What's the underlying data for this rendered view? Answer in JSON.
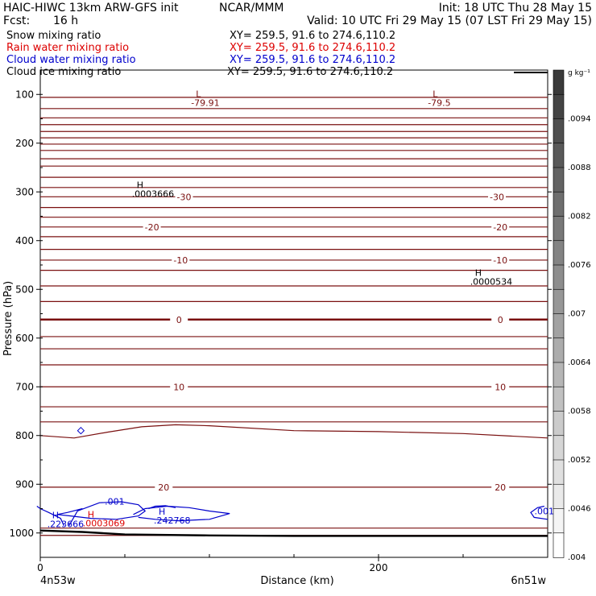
{
  "header": {
    "model": "HAIC-HIWC 13km ARW-GFS init",
    "org": "NCAR/MMM",
    "init": "Init: 18 UTC Thu 28 May 15",
    "fcst_label": "Fcst:",
    "fcst_value": "16 h",
    "valid": "Valid: 10 UTC Fri 29 May 15 (07 LST Fri 29 May 15)"
  },
  "fields": [
    {
      "name": "Snow mixing ratio",
      "xy": "XY= 259.5, 91.6 to 274.6,110.2",
      "color": "#000000"
    },
    {
      "name": "Rain water mixing ratio",
      "xy": "XY= 259.5, 91.6 to 274.6,110.2",
      "color": "#dd0000"
    },
    {
      "name": "Cloud water mixing ratio",
      "xy": "XY= 259.5, 91.6 to 274.6,110.2",
      "color": "#0000cc"
    },
    {
      "name": "Cloud ice mixing ratio",
      "xy": "XY= 259.5, 91.6 to 274.6,110.2",
      "color": "#000000"
    }
  ],
  "chart_data": {
    "type": "contour cross-section",
    "xlabel": "Distance (km)",
    "ylabel": "Pressure (hPa)",
    "xlim": [
      0,
      300
    ],
    "ylim": [
      1050,
      50
    ],
    "x_ticks": [
      0,
      200
    ],
    "y_ticks": [
      100,
      200,
      300,
      400,
      500,
      600,
      700,
      800,
      900,
      1000
    ],
    "x_endpoint_labels": [
      "4n53w",
      "6n51w"
    ],
    "colorbar": {
      "unit": "g kg⁻¹",
      "labels": [
        ".0094",
        ".0088",
        ".0082",
        ".0076",
        ".007",
        ".0064",
        ".0058",
        ".0052",
        ".0046",
        ".004"
      ],
      "color_dark": "#3a3a3a",
      "color_light": "#ffffff"
    },
    "temperature_contours": {
      "color": "#7a1010",
      "levels": [
        {
          "value": "-30",
          "p": 310,
          "labels_x": [
            85,
            270
          ]
        },
        {
          "value": "-20",
          "p": 372,
          "labels_x": [
            66,
            272
          ]
        },
        {
          "value": "-10",
          "p": 440,
          "labels_x": [
            83,
            272
          ]
        },
        {
          "value": "0",
          "p": 562,
          "labels_x": [
            82,
            272
          ]
        },
        {
          "value": "10",
          "p": 700,
          "labels_x": [
            82,
            272
          ]
        },
        {
          "value": "20",
          "p": 906,
          "labels_x": [
            73,
            272
          ]
        }
      ],
      "extra_levels": [
        106,
        129,
        148,
        162,
        176,
        189,
        202,
        215,
        232,
        247,
        270,
        291,
        332,
        352,
        392,
        418,
        461,
        493,
        525,
        597,
        622,
        655,
        741,
        772,
        990,
        1005
      ],
      "wavy_level": {
        "x": [
          0,
          20,
          40,
          60,
          80,
          100,
          150,
          200,
          250,
          300
        ],
        "p": [
          800,
          805,
          793,
          782,
          778,
          780,
          790,
          792,
          796,
          805
        ]
      }
    },
    "annotations": [
      {
        "letter": "L",
        "value": "-79.91",
        "x": 92,
        "p": 105,
        "color": "#7a1010"
      },
      {
        "letter": "L",
        "value": "-79.5",
        "x": 232,
        "p": 105,
        "color": "#7a1010"
      },
      {
        "letter": "H",
        "value": ".0003666",
        "x": 57,
        "p": 292,
        "color": "#000000"
      },
      {
        "letter": "H",
        "value": ".0000534",
        "x": 257,
        "p": 472,
        "color": "#000000"
      },
      {
        "letter": "H",
        "value": ".0003069",
        "x": 28,
        "p": 968,
        "color": "#dd0000"
      },
      {
        "letter": "H",
        "value": ".223666",
        "x": 7,
        "p": 970,
        "color": "#0000cc"
      },
      {
        "letter": "H",
        "value": ".242768",
        "x": 70,
        "p": 962,
        "color": "#0000cc"
      }
    ],
    "cloud_water_labels": [
      {
        "value": ".001",
        "x": 44,
        "p": 935
      },
      {
        "value": ".001",
        "x": 298,
        "p": 955
      }
    ],
    "cloud_water_contours": [
      {
        "x": [
          17,
          22,
          35,
          48,
          58,
          62,
          58,
          45,
          30,
          18,
          10,
          16,
          25
        ],
        "p": [
          985,
          955,
          938,
          936,
          942,
          955,
          965,
          972,
          970,
          965,
          962,
          958,
          950
        ]
      },
      {
        "x": [
          55,
          62,
          75,
          88,
          100,
          112,
          100,
          82,
          68,
          58
        ],
        "p": [
          962,
          950,
          945,
          948,
          955,
          960,
          972,
          975,
          972,
          968
        ]
      },
      {
        "x": [
          64,
          68,
          74,
          80
        ],
        "p": [
          950,
          945,
          944,
          948
        ]
      },
      {
        "x": [
          -2,
          0,
          5,
          12,
          14
        ],
        "p": [
          945,
          950,
          958,
          970,
          985
        ]
      },
      {
        "x": [
          298,
          294,
          290,
          292,
          300
        ],
        "p": [
          945,
          948,
          958,
          968,
          972
        ]
      }
    ],
    "cloud_water_marker": {
      "x": 24,
      "p": 790
    },
    "terrain": {
      "x": [
        0,
        25,
        50,
        100,
        150,
        200,
        250,
        300
      ],
      "p": [
        995,
        998,
        1003,
        1005,
        1006,
        1006,
        1006,
        1006
      ]
    },
    "top_right_line": {
      "x": [
        280,
        300
      ],
      "p": [
        55,
        55
      ]
    }
  }
}
